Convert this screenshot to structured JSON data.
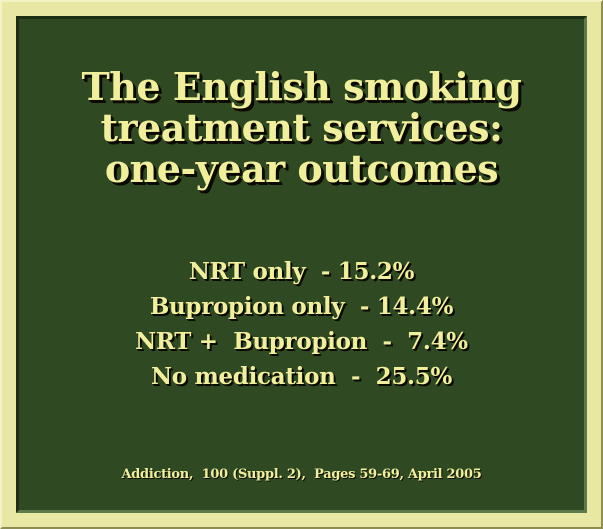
{
  "slide": {
    "title_lines": [
      "The English smoking",
      "treatment services:",
      "one-year outcomes"
    ],
    "results": [
      "NRT only  - 15.2%",
      "Bupropion only  - 14.4%",
      "NRT +  Bupropion  -  7.4%",
      "No medication  -  25.5%"
    ],
    "citation": "Addiction,  100 (Suppl. 2),  Pages 59-69, April 2005"
  },
  "colors": {
    "frame": "#e8e7a4",
    "panel": "#2f4a23",
    "text": "#f2ef9c",
    "shadow": "#0a0a00"
  }
}
